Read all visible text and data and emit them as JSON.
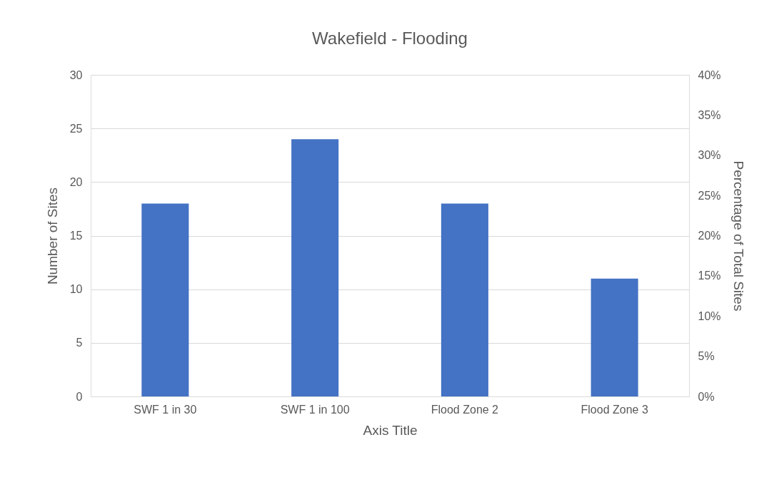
{
  "chart_data": {
    "type": "bar",
    "title": "Wakefield - Flooding",
    "xlabel": "Axis Title",
    "ylabel": "Number of Sites",
    "y2label": "Percentage of Total Sites",
    "categories": [
      "SWF 1 in 30",
      "SWF 1 in 100",
      "Flood Zone 2",
      "Flood Zone 3"
    ],
    "series": [
      {
        "color": "#4472c4",
        "values": [
          18,
          24,
          18,
          11
        ]
      }
    ],
    "ylim": [
      0,
      30
    ],
    "yticks": [
      0,
      5,
      10,
      15,
      20,
      25,
      30
    ],
    "y2lim": [
      0,
      40
    ],
    "y2ticks": [
      {
        "value": 0,
        "label": "0%"
      },
      {
        "value": 5,
        "label": "5%"
      },
      {
        "value": 10,
        "label": "10%"
      },
      {
        "value": 15,
        "label": "15%"
      },
      {
        "value": 20,
        "label": "20%"
      },
      {
        "value": 25,
        "label": "25%"
      },
      {
        "value": 30,
        "label": "30%"
      },
      {
        "value": 35,
        "label": "35%"
      },
      {
        "value": 40,
        "label": "40%"
      }
    ],
    "grid": "y"
  }
}
